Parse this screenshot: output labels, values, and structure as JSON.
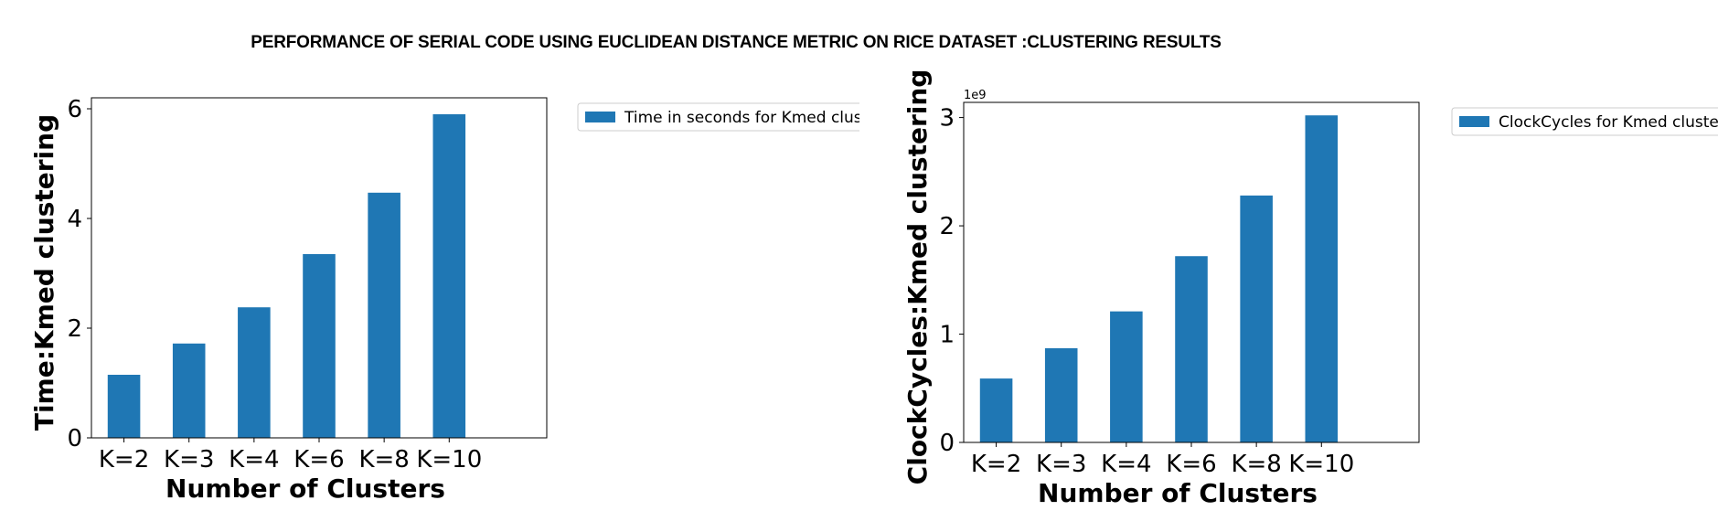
{
  "figure": {
    "title": "PERFORMANCE OF SERIAL CODE USING EUCLIDEAN DISTANCE METRIC ON RICE DATASET :CLUSTERING RESULTS"
  },
  "chart_data": [
    {
      "type": "bar",
      "categories": [
        "K=2",
        "K=3",
        "K=4",
        "K=6",
        "K=8",
        "K=10"
      ],
      "series": [
        {
          "name": "Time in seconds for Kmed clustering",
          "values": [
            1.15,
            1.72,
            2.38,
            3.35,
            4.47,
            5.9
          ],
          "color": "#1f77b4"
        }
      ],
      "xlabel": "Number of Clusters",
      "ylabel": "Time:Kmed clustering",
      "ylim": [
        0,
        6.2
      ],
      "yticks": [
        0,
        2,
        4,
        6
      ],
      "ytick_labels": [
        "0",
        "2",
        "4",
        "6"
      ],
      "offset_label": "",
      "legend_placement": "outside-right-top",
      "grid": false
    },
    {
      "type": "bar",
      "categories": [
        "K=2",
        "K=3",
        "K=4",
        "K=6",
        "K=8",
        "K=10"
      ],
      "series": [
        {
          "name": "ClockCycles for Kmed clustering",
          "values": [
            590000000,
            870000000,
            1210000000,
            1720000000,
            2280000000,
            3020000000
          ],
          "color": "#1f77b4"
        }
      ],
      "xlabel": "Number of Clusters",
      "ylabel": "ClockCycles:Kmed clustering",
      "ylim": [
        0,
        3140000000
      ],
      "yticks": [
        0,
        1000000000,
        2000000000,
        3000000000
      ],
      "ytick_labels": [
        "0",
        "1",
        "2",
        "3"
      ],
      "offset_label": "1e9",
      "legend_placement": "outside-right-top",
      "grid": false
    }
  ]
}
